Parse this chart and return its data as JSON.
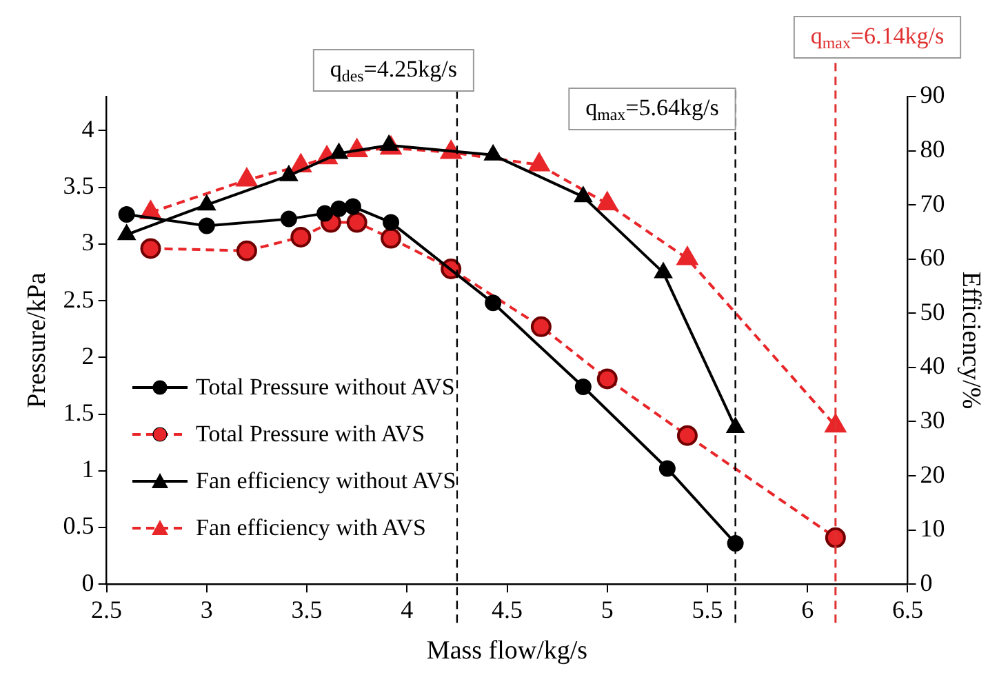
{
  "chart_data": {
    "type": "line",
    "xlabel": "Mass flow/kg/s",
    "ylabel": "Pressure/kPa",
    "y2label": "Efficiency/%",
    "xlim": [
      2.5,
      6.5
    ],
    "xticks": [
      2.5,
      3,
      3.5,
      4,
      4.5,
      5,
      5.5,
      6,
      6.5
    ],
    "ylim": [
      0,
      4.3
    ],
    "yticks": [
      0,
      0.5,
      1,
      1.5,
      2,
      2.5,
      3,
      3.5,
      4
    ],
    "y2lim": [
      0,
      90
    ],
    "y2ticks": [
      0,
      10,
      20,
      30,
      40,
      50,
      60,
      70,
      80,
      90
    ],
    "grid": false,
    "legend": "bottom left",
    "series": [
      {
        "name": "Total Pressure without AVS",
        "color": "#000000",
        "marker": "circle",
        "line_style": "solid",
        "x": [
          2.6,
          3.0,
          3.41,
          3.59,
          3.66,
          3.73,
          3.92,
          4.43,
          4.88,
          5.3,
          5.64
        ],
        "values": [
          3.26,
          3.16,
          3.22,
          3.27,
          3.31,
          3.33,
          3.19,
          2.48,
          1.74,
          1.02,
          0.36
        ]
      },
      {
        "name": "Total Pressure with AVS",
        "color": "#e8262a",
        "marker": "circle",
        "line_style": "dashed",
        "x": [
          2.72,
          3.2,
          3.47,
          3.62,
          3.75,
          3.92,
          4.22,
          4.67,
          5.0,
          5.4,
          6.14
        ],
        "values": [
          2.96,
          2.94,
          3.06,
          3.19,
          3.19,
          3.05,
          2.78,
          2.27,
          1.81,
          1.31,
          0.41
        ]
      },
      {
        "name": "Fan efficiency without AVS",
        "color": "#000000",
        "marker": "triangle",
        "line_style": "solid",
        "axis": "y2",
        "x": [
          2.6,
          3.0,
          3.41,
          3.66,
          3.91,
          4.43,
          4.88,
          5.28,
          5.64
        ],
        "values": [
          64.5,
          70,
          75.4,
          79.5,
          81,
          79.2,
          71.5,
          57.5,
          28.9
        ]
      },
      {
        "name": "Fan efficiency with AVS",
        "color": "#e8262a",
        "marker": "triangle",
        "line_style": "dashed",
        "axis": "y2",
        "x": [
          2.72,
          3.2,
          3.47,
          3.6,
          3.75,
          3.92,
          4.22,
          4.66,
          5.0,
          5.4,
          6.14
        ],
        "values": [
          68.6,
          74.6,
          77.2,
          78.7,
          80,
          80.5,
          79.7,
          77.4,
          70.2,
          60.1,
          29.2
        ]
      }
    ],
    "ref_lines": [
      {
        "axis": "x",
        "value": 4.25,
        "label": "q$_{des}$=4.25kg/s",
        "color": "#000000",
        "line_style": "dashed"
      },
      {
        "axis": "x",
        "value": 5.64,
        "label": "q$_{max}$=5.64kg/s",
        "color": "#000000",
        "line_style": "dashed"
      },
      {
        "axis": "x",
        "value": 6.14,
        "label": "q$_{max}$=6.14kg/s",
        "color": "#e03030",
        "line_style": "dashed"
      }
    ]
  }
}
